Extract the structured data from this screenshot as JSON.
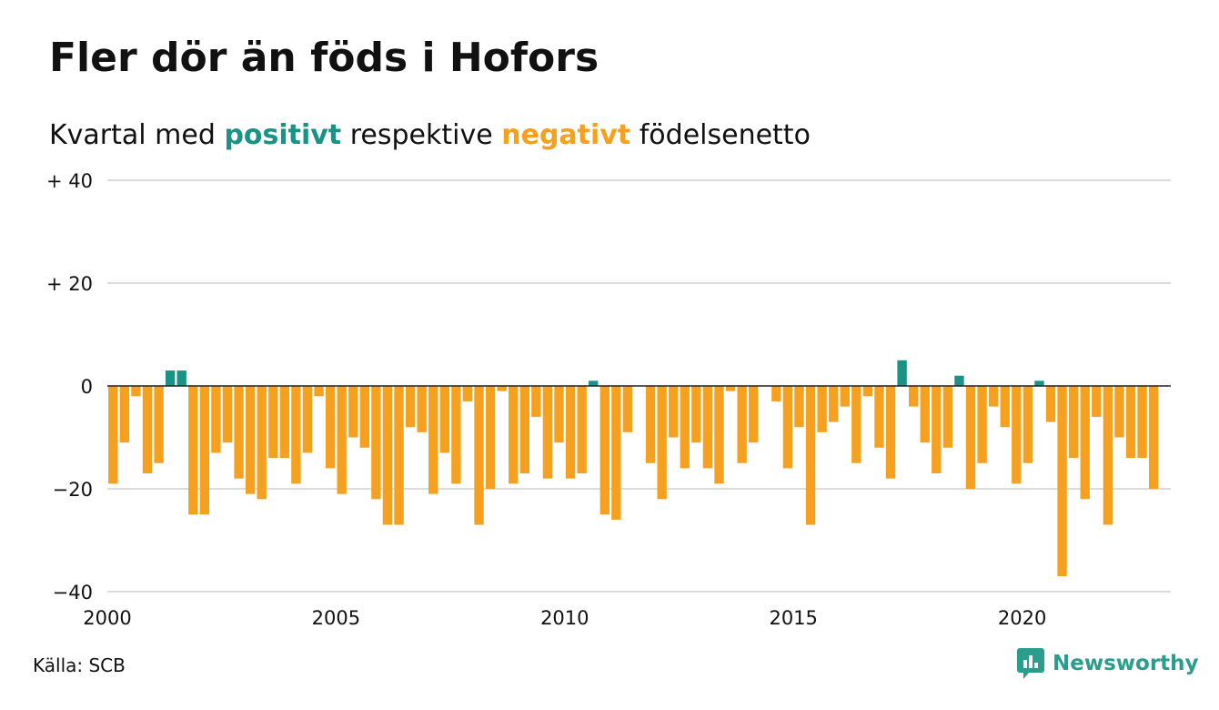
{
  "title": "Fler dör än föds i Hofors",
  "subtitle": {
    "prefix": "Kvartal med",
    "positive_word": "positivt",
    "middle": "respektive",
    "negative_word": "negativt",
    "suffix": "födelsenetto"
  },
  "source": "Källa: SCB",
  "brand": {
    "name": "Newsworthy",
    "icon": "newsworthy-logo-icon"
  },
  "colors": {
    "positive": "#1a9285",
    "negative": "#f5a11f",
    "grid": "#dcdcdc",
    "text": "#111111"
  },
  "chart_data": {
    "type": "bar",
    "title": "Fler dör än föds i Hofors",
    "subtitle": "Kvartal med positivt respektive negativt födelsenetto",
    "xlabel": "",
    "ylabel": "",
    "ylim": [
      -40,
      40
    ],
    "xlim": [
      2000,
      2023.25
    ],
    "yticks": [
      {
        "value": 40,
        "label": "+ 40"
      },
      {
        "value": 20,
        "label": "+ 20"
      },
      {
        "value": 0,
        "label": "0"
      },
      {
        "value": -20,
        "label": "−20"
      },
      {
        "value": -40,
        "label": "−40"
      }
    ],
    "xticks": [
      {
        "value": 2000,
        "label": "2000"
      },
      {
        "value": 2005,
        "label": "2005"
      },
      {
        "value": 2010,
        "label": "2010"
      },
      {
        "value": 2015,
        "label": "2015"
      },
      {
        "value": 2020,
        "label": "2020"
      }
    ],
    "grid": true,
    "legend": "none",
    "start_year": 2000,
    "quarters_per_year": 4,
    "values": [
      -19,
      -11,
      -2,
      -17,
      -15,
      3,
      3,
      -25,
      -25,
      -13,
      -11,
      -18,
      -21,
      -22,
      -14,
      -14,
      -19,
      -13,
      -2,
      -16,
      -21,
      -10,
      -12,
      -22,
      -27,
      -27,
      -8,
      -9,
      -21,
      -13,
      -19,
      -3,
      -27,
      -20,
      -1,
      -19,
      -17,
      -6,
      -18,
      -11,
      -18,
      -17,
      1,
      -25,
      -26,
      -9,
      0,
      -15,
      -22,
      -10,
      -16,
      -11,
      -16,
      -19,
      -1,
      -15,
      -11,
      0,
      -3,
      -16,
      -8,
      -27,
      -9,
      -7,
      -4,
      -15,
      -2,
      -12,
      -18,
      5,
      -4,
      -11,
      -17,
      -12,
      2,
      -20,
      -15,
      -4,
      -8,
      -19,
      -15,
      1,
      -7,
      -37,
      -14,
      -22,
      -6,
      -27,
      -10,
      -14,
      -14,
      -20
    ]
  }
}
